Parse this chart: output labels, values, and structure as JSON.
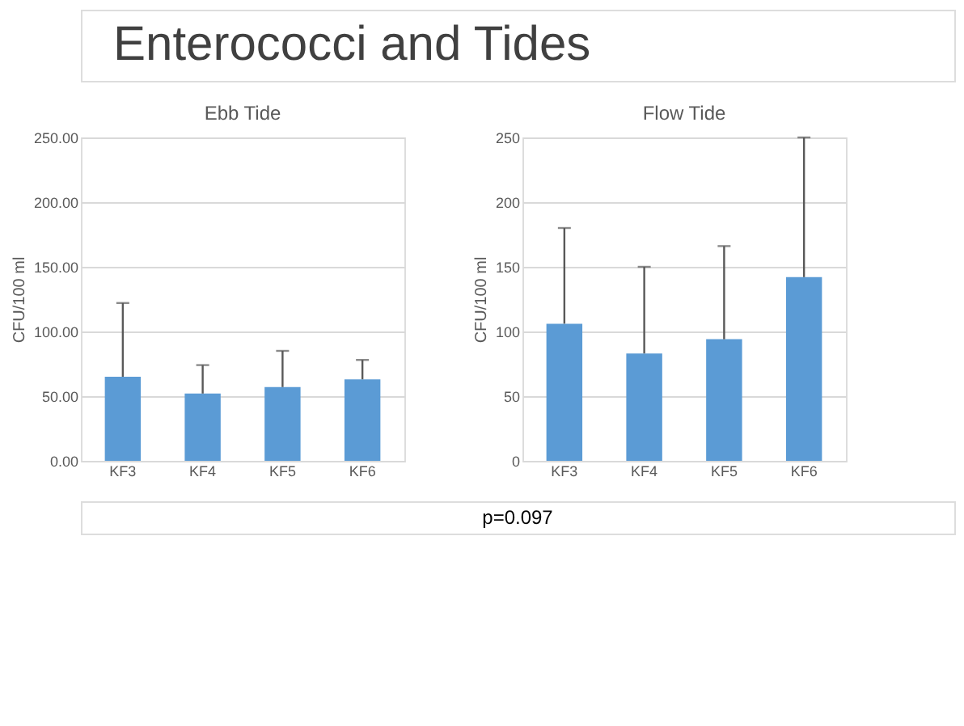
{
  "chart_data": [
    {
      "type": "other",
      "title": "Enterococci and Tides",
      "annotations": [
        "p=0.097"
      ]
    },
    {
      "type": "bar",
      "title": "Ebb Tide",
      "ylabel": "CFU/100 ml",
      "categories": [
        "KF3",
        "KF4",
        "KF5",
        "KF6"
      ],
      "values": [
        65,
        52,
        57,
        63
      ],
      "color": "#5b9bd5",
      "errors": [
        [
          65,
          122
        ],
        [
          52,
          74
        ],
        [
          57,
          85
        ],
        [
          63,
          78
        ]
      ],
      "ylim": [
        0,
        250
      ],
      "yticks": [
        {
          "value": 0,
          "label": "0.00"
        },
        {
          "value": 50,
          "label": "50.00"
        },
        {
          "value": 100,
          "label": "100.00"
        },
        {
          "value": 150,
          "label": "150.00"
        },
        {
          "value": 200,
          "label": "200.00"
        },
        {
          "value": 250,
          "label": "250.00"
        }
      ],
      "grid": "y"
    },
    {
      "type": "bar",
      "title": "Flow Tide",
      "ylabel": "CFU/100 ml",
      "categories": [
        "KF3",
        "KF4",
        "KF5",
        "KF6"
      ],
      "values": [
        106,
        83,
        94,
        142
      ],
      "color": "#5b9bd5",
      "errors": [
        [
          106,
          180
        ],
        [
          83,
          150
        ],
        [
          94,
          166
        ],
        [
          142,
          250
        ]
      ],
      "ylim": [
        0,
        250
      ],
      "yticks": [
        0,
        50,
        100,
        150,
        200,
        250
      ],
      "grid": "y"
    }
  ]
}
